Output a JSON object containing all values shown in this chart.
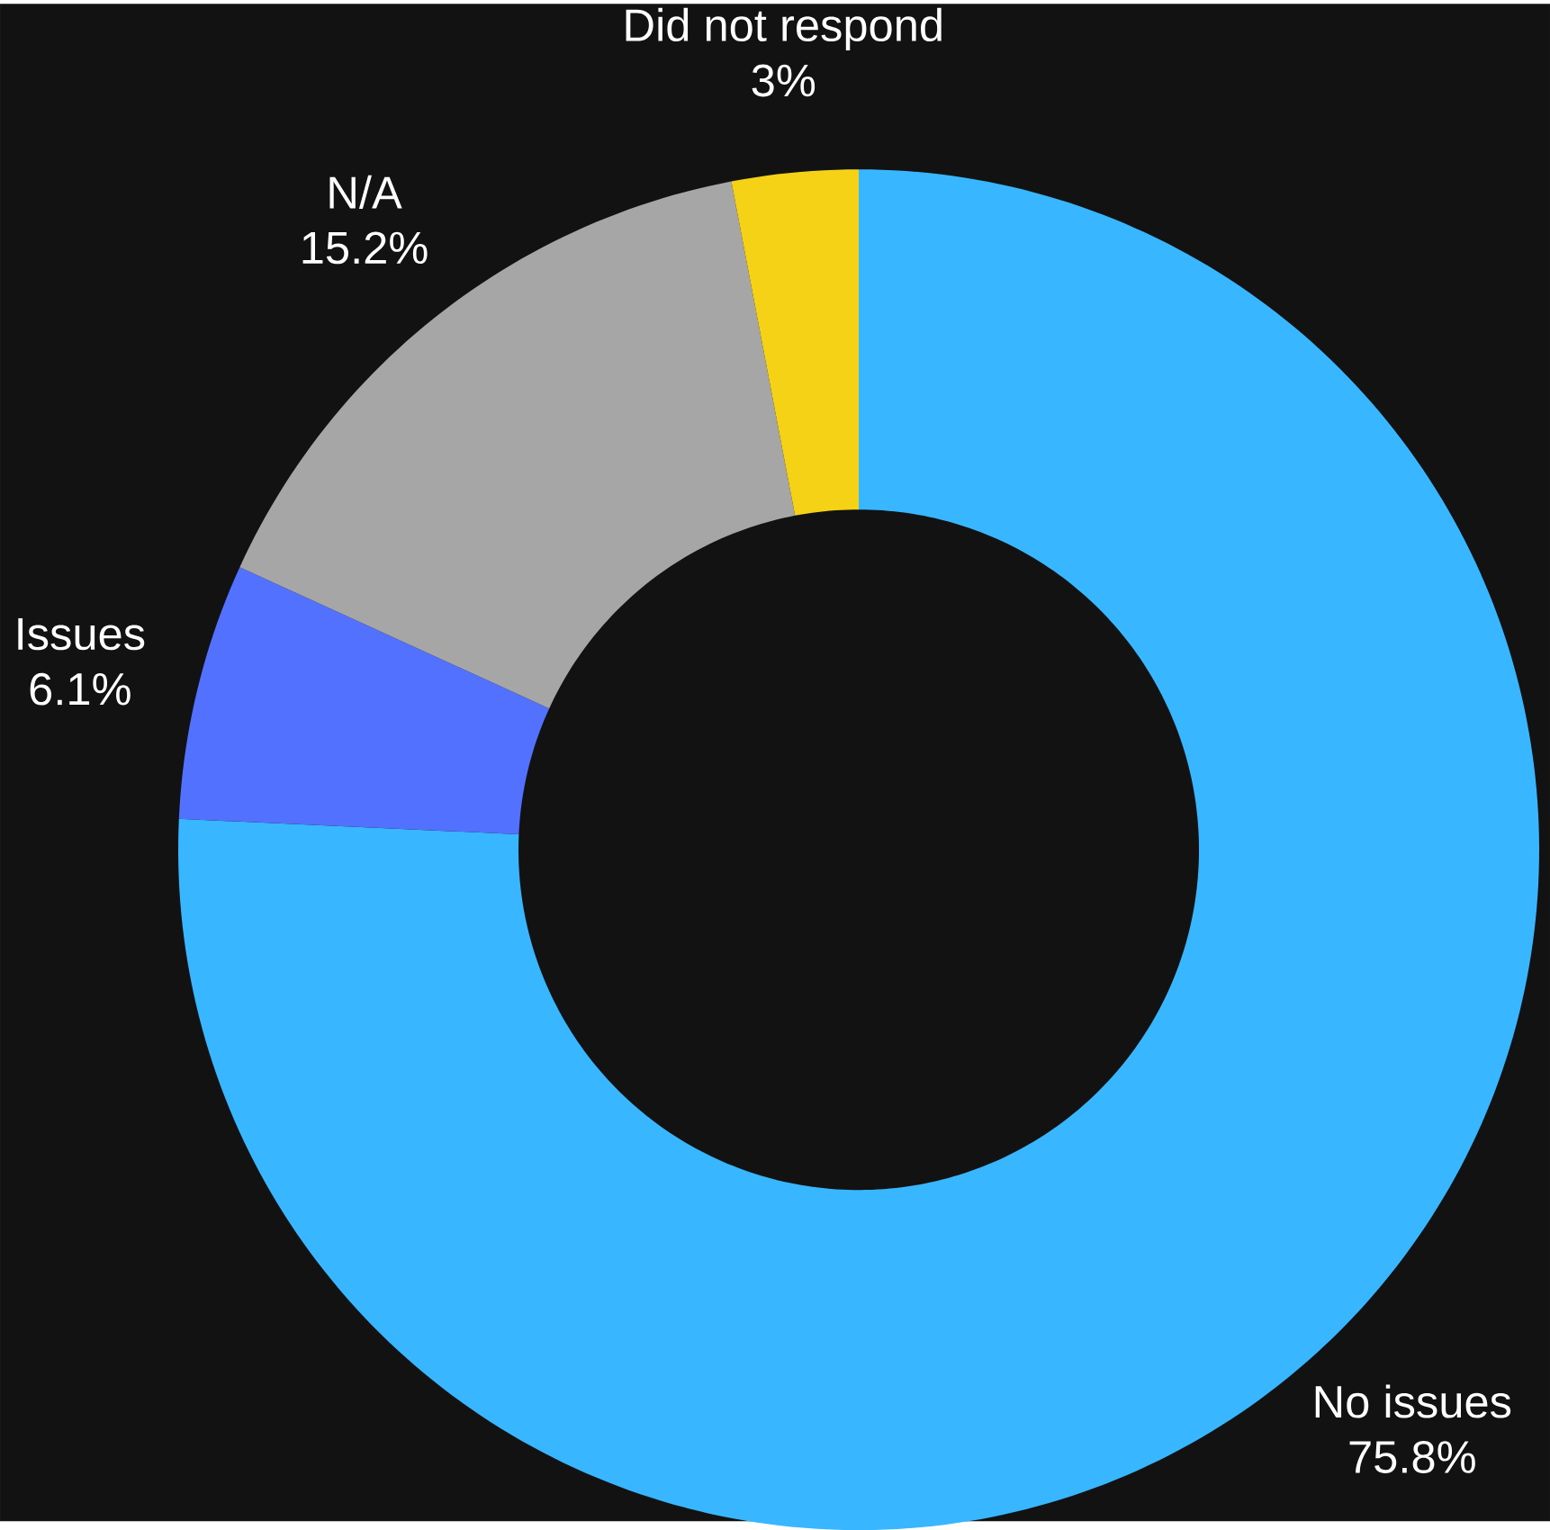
{
  "chart_data": {
    "type": "donut",
    "categories": [
      "No issues",
      "Issues",
      "N/A",
      "Did not respond"
    ],
    "values": [
      75.8,
      6.1,
      15.2,
      3
    ],
    "value_labels": [
      "75.8%",
      "6.1%",
      "15.2%",
      "3%"
    ],
    "colors": [
      "#38b6ff",
      "#5271ff",
      "#a6a6a6",
      "#f5d216"
    ]
  }
}
